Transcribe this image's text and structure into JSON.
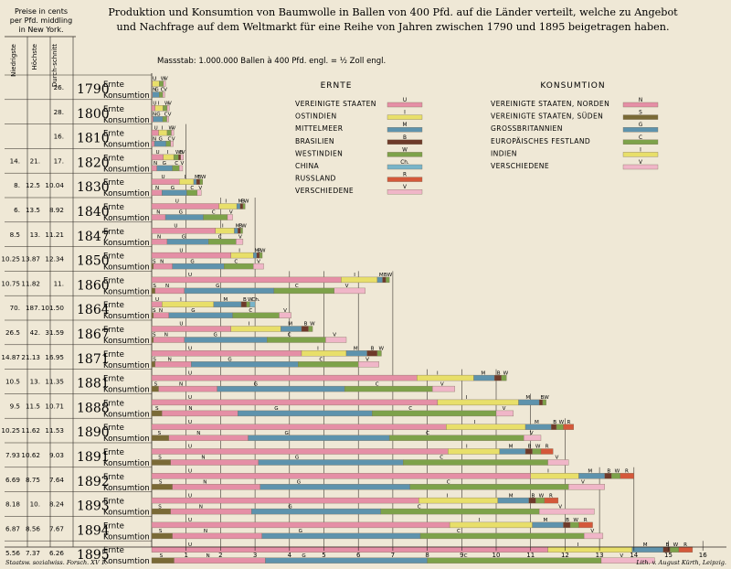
{
  "chart_data": {
    "type": "bar",
    "orientation": "horizontal-stacked",
    "title_line1": "Produktion und Konsumtion von Baumwolle in Ballen von 400 Pfd. auf die Länder verteilt, welche zu Angebot",
    "title_line2": "und Nachfrage auf dem Weltmarkt für eine Reihe von Jahren zwischen 1790 und 1895 beigetragen haben.",
    "scale_note": "Massstab: 1.000.000 Ballen à 400 Pfd. engl. = ½ Zoll engl.",
    "price_header": "Preise in cents per Pfd. middling in New York.",
    "price_columns": [
      "Niedrigste",
      "Höchste",
      "Durch-schnitt"
    ],
    "row_labels": {
      "production": "Ernte",
      "consumption": "Konsumtion"
    },
    "x_ticks": [
      "1",
      "2",
      "3",
      "4",
      "5",
      "6",
      "7",
      "8",
      "9",
      "10",
      "11",
      "12",
      "13",
      "14",
      "15",
      "16",
      "17"
    ],
    "xlim": [
      0,
      17
    ],
    "grid": "vertical lines starting at each year row",
    "legend_production_title": "ERNTE",
    "legend_production": [
      {
        "key": "U",
        "name": "VEREINIGTE STAATEN",
        "color": "#e58fa6"
      },
      {
        "key": "I",
        "name": "OSTINDIEN",
        "color": "#e8df6a"
      },
      {
        "key": "M",
        "name": "MITTELMEER",
        "color": "#5e93ad"
      },
      {
        "key": "B",
        "name": "BRASILIEN",
        "color": "#6e3a2a"
      },
      {
        "key": "W",
        "name": "WESTINDIEN",
        "color": "#7da24a"
      },
      {
        "key": "Ch.",
        "name": "CHINA",
        "color": "#78b4c9"
      },
      {
        "key": "R",
        "name": "RUSSLAND",
        "color": "#d4583a"
      },
      {
        "key": "V",
        "name": "VERSCHIEDENE",
        "color": "#f0b6c8"
      }
    ],
    "legend_consumption_title": "KONSUMTION",
    "legend_consumption": [
      {
        "key": "N",
        "name": "VEREINIGTE STAATEN, NORDEN",
        "color": "#e58fa6"
      },
      {
        "key": "S",
        "name": "VEREINIGTE STAATEN, SÜDEN",
        "color": "#7a6a36"
      },
      {
        "key": "G",
        "name": "GROSSBRITANNIEN",
        "color": "#5e93ad"
      },
      {
        "key": "C",
        "name": "EUROPÄISCHES FESTLAND",
        "color": "#7da24a"
      },
      {
        "key": "I",
        "name": "INDIEN",
        "color": "#e8df6a"
      },
      {
        "key": "V",
        "name": "VERSCHIEDENE",
        "color": "#f0b6c8"
      }
    ],
    "rows": [
      {
        "year": "1790",
        "prices": [
          "",
          "",
          "26."
        ],
        "production": [
          [
            "U",
            0.02
          ],
          [
            "I",
            0.2
          ],
          [
            "W",
            0.12
          ],
          [
            "V",
            0.06
          ]
        ],
        "consumption": [
          [
            "N",
            0.02
          ],
          [
            "G",
            0.2
          ],
          [
            "C",
            0.1
          ],
          [
            "V",
            0.06
          ]
        ]
      },
      {
        "year": "1800",
        "prices": [
          "",
          "",
          "28."
        ],
        "production": [
          [
            "U",
            0.1
          ],
          [
            "I",
            0.23
          ],
          [
            "W",
            0.12
          ],
          [
            "V",
            0.06
          ]
        ],
        "consumption": [
          [
            "N",
            0.04
          ],
          [
            "G",
            0.28
          ],
          [
            "C",
            0.12
          ],
          [
            "V",
            0.06
          ]
        ]
      },
      {
        "year": "1810",
        "prices": [
          "",
          "",
          "16."
        ],
        "production": [
          [
            "U",
            0.2
          ],
          [
            "I",
            0.25
          ],
          [
            "W",
            0.12
          ],
          [
            "V",
            0.07
          ]
        ],
        "consumption": [
          [
            "N",
            0.08
          ],
          [
            "G",
            0.34
          ],
          [
            "C",
            0.13
          ],
          [
            "V",
            0.08
          ]
        ]
      },
      {
        "year": "1820",
        "prices": [
          "14.",
          "21.",
          "17."
        ],
        "production": [
          [
            "U",
            0.34
          ],
          [
            "I",
            0.3
          ],
          [
            "W",
            0.14
          ],
          [
            "B",
            0.06
          ],
          [
            "V",
            0.08
          ]
        ],
        "consumption": [
          [
            "N",
            0.15
          ],
          [
            "G",
            0.45
          ],
          [
            "C",
            0.2
          ],
          [
            "V",
            0.1
          ]
        ]
      },
      {
        "year": "1830",
        "prices": [
          "8.",
          "12.5",
          "10.04"
        ],
        "production": [
          [
            "U",
            0.8
          ],
          [
            "I",
            0.42
          ],
          [
            "M",
            0.08
          ],
          [
            "B",
            0.1
          ],
          [
            "W",
            0.08
          ]
        ],
        "consumption": [
          [
            "N",
            0.3
          ],
          [
            "G",
            0.72
          ],
          [
            "C",
            0.3
          ],
          [
            "V",
            0.12
          ]
        ]
      },
      {
        "year": "1840",
        "prices": [
          "6.",
          "13.5",
          "8.92"
        ],
        "production": [
          [
            "U",
            1.95
          ],
          [
            "I",
            0.52
          ],
          [
            "M",
            0.1
          ],
          [
            "B",
            0.08
          ],
          [
            "W",
            0.06
          ]
        ],
        "consumption": [
          [
            "N",
            0.4
          ],
          [
            "G",
            1.1
          ],
          [
            "C",
            0.7
          ],
          [
            "V",
            0.15
          ]
        ]
      },
      {
        "year": "1847",
        "prices": [
          "8.5",
          "13.",
          "11.21"
        ],
        "production": [
          [
            "U",
            1.85
          ],
          [
            "I",
            0.55
          ],
          [
            "M",
            0.1
          ],
          [
            "B",
            0.08
          ],
          [
            "W",
            0.06
          ]
        ],
        "consumption": [
          [
            "N",
            0.45
          ],
          [
            "G",
            1.2
          ],
          [
            "C",
            0.8
          ],
          [
            "V",
            0.2
          ]
        ]
      },
      {
        "year": "1850",
        "prices": [
          "10.25",
          "13.87",
          "12.34"
        ],
        "production": [
          [
            "U",
            2.3
          ],
          [
            "I",
            0.65
          ],
          [
            "M",
            0.1
          ],
          [
            "B",
            0.08
          ],
          [
            "W",
            0.08
          ]
        ],
        "consumption": [
          [
            "S",
            0.05
          ],
          [
            "N",
            0.55
          ],
          [
            "G",
            1.5
          ],
          [
            "C",
            0.85
          ],
          [
            "V",
            0.3
          ]
        ]
      },
      {
        "year": "1860",
        "prices": [
          "10.75",
          "11.82",
          "11."
        ],
        "production": [
          [
            "U",
            5.5
          ],
          [
            "I",
            1.05
          ],
          [
            "M",
            0.15
          ],
          [
            "B",
            0.1
          ],
          [
            "W",
            0.1
          ]
        ],
        "consumption": [
          [
            "S",
            0.1
          ],
          [
            "N",
            0.85
          ],
          [
            "G",
            2.6
          ],
          [
            "C",
            1.75
          ],
          [
            "V",
            0.9
          ]
        ]
      },
      {
        "year": "1864",
        "prices": [
          "70.",
          "187.",
          "101.50"
        ],
        "production": [
          [
            "U",
            0.3
          ],
          [
            "I",
            1.5
          ],
          [
            "M",
            0.8
          ],
          [
            "B",
            0.15
          ],
          [
            "W",
            0.1
          ],
          [
            "Ch.",
            0.15
          ]
        ],
        "consumption": [
          [
            "S",
            0.05
          ],
          [
            "N",
            0.45
          ],
          [
            "G",
            1.85
          ],
          [
            "C",
            1.35
          ],
          [
            "V",
            0.35
          ]
        ]
      },
      {
        "year": "1867",
        "prices": [
          "26.5",
          "42.",
          "31.59"
        ],
        "production": [
          [
            "U",
            2.3
          ],
          [
            "I",
            1.45
          ],
          [
            "M",
            0.6
          ],
          [
            "B",
            0.2
          ],
          [
            "W",
            0.12
          ]
        ],
        "consumption": [
          [
            "S",
            0.05
          ],
          [
            "N",
            0.9
          ],
          [
            "G",
            2.4
          ],
          [
            "C",
            1.7
          ],
          [
            "V",
            0.6
          ]
        ]
      },
      {
        "year": "1871",
        "prices": [
          "14.87",
          "21.13",
          "16.95"
        ],
        "production": [
          [
            "U",
            4.35
          ],
          [
            "I",
            1.3
          ],
          [
            "M",
            0.6
          ],
          [
            "B",
            0.3
          ],
          [
            "W",
            0.12
          ]
        ],
        "consumption": [
          [
            "S",
            0.1
          ],
          [
            "N",
            1.05
          ],
          [
            "G",
            3.1
          ],
          [
            "C",
            1.75
          ],
          [
            "V",
            0.6
          ]
        ]
      },
      {
        "year": "1881",
        "prices": [
          "10.5",
          "13.",
          "11.35"
        ],
        "production": [
          [
            "U",
            7.7
          ],
          [
            "I",
            1.65
          ],
          [
            "M",
            0.6
          ],
          [
            "B",
            0.2
          ],
          [
            "W",
            0.15
          ]
        ],
        "consumption": [
          [
            "S",
            0.2
          ],
          [
            "N",
            1.7
          ],
          [
            "G",
            3.7
          ],
          [
            "C",
            2.55
          ],
          [
            "V",
            0.65
          ]
        ]
      },
      {
        "year": "1888",
        "prices": [
          "9.5",
          "11.5",
          "10.71"
        ],
        "production": [
          [
            "U",
            8.3
          ],
          [
            "I",
            2.35
          ],
          [
            "M",
            0.6
          ],
          [
            "B",
            0.1
          ],
          [
            "W",
            0.1
          ]
        ],
        "consumption": [
          [
            "S",
            0.3
          ],
          [
            "N",
            2.2
          ],
          [
            "G",
            3.9
          ],
          [
            "C",
            3.6
          ],
          [
            "V",
            0.5
          ]
        ]
      },
      {
        "year": "1890",
        "prices": [
          "10.25",
          "11.62",
          "11.53"
        ],
        "production": [
          [
            "U",
            8.55
          ],
          [
            "I",
            2.3
          ],
          [
            "M",
            0.75
          ],
          [
            "B",
            0.15
          ],
          [
            "W",
            0.2
          ],
          [
            "R",
            0.3
          ]
        ],
        "consumption": [
          [
            "S",
            0.5
          ],
          [
            "N",
            2.3
          ],
          [
            "G",
            4.1
          ],
          [
            "C",
            3.9
          ],
          [
            "V",
            0.5
          ]
        ]
      },
      {
        "year": "1891",
        "prices": [
          "7.93",
          "10.62",
          "9.03"
        ],
        "production": [
          [
            "U",
            8.6
          ],
          [
            "I",
            1.5
          ],
          [
            "M",
            0.75
          ],
          [
            "B",
            0.2
          ],
          [
            "W",
            0.25
          ],
          [
            "R",
            0.35
          ]
        ],
        "consumption": [
          [
            "S",
            0.55
          ],
          [
            "N",
            2.55
          ],
          [
            "G",
            4.2
          ],
          [
            "C",
            4.2
          ],
          [
            "V",
            0.6
          ]
        ]
      },
      {
        "year": "1892",
        "prices": [
          "6.69",
          "8.75",
          "7.64"
        ],
        "production": [
          [
            "U",
            11.0
          ],
          [
            "I",
            1.4
          ],
          [
            "M",
            0.75
          ],
          [
            "B",
            0.2
          ],
          [
            "W",
            0.25
          ],
          [
            "R",
            0.4
          ]
        ],
        "consumption": [
          [
            "S",
            0.6
          ],
          [
            "N",
            2.55
          ],
          [
            "G",
            4.35
          ],
          [
            "C",
            4.6
          ],
          [
            "V",
            1.05
          ]
        ]
      },
      {
        "year": "1893",
        "prices": [
          "8.18",
          "10.",
          "8.24"
        ],
        "production": [
          [
            "U",
            7.75
          ],
          [
            "I",
            2.3
          ],
          [
            "M",
            0.9
          ],
          [
            "B",
            0.2
          ],
          [
            "W",
            0.25
          ],
          [
            "R",
            0.4
          ]
        ],
        "consumption": [
          [
            "S",
            0.55
          ],
          [
            "N",
            2.35
          ],
          [
            "G",
            3.75
          ],
          [
            "C",
            4.6
          ],
          [
            "V",
            1.6
          ]
        ]
      },
      {
        "year": "1894",
        "prices": [
          "6.87",
          "8.56",
          "7.67"
        ],
        "production": [
          [
            "U",
            8.65
          ],
          [
            "I",
            2.4
          ],
          [
            "M",
            0.9
          ],
          [
            "B",
            0.2
          ],
          [
            "W",
            0.25
          ],
          [
            "R",
            0.4
          ]
        ],
        "consumption": [
          [
            "S",
            0.6
          ],
          [
            "N",
            2.6
          ],
          [
            "G",
            4.6
          ],
          [
            "C",
            4.75
          ],
          [
            "V",
            0.55
          ]
        ]
      },
      {
        "year": "1895",
        "prices": [
          "5.56",
          "7.37",
          "6.26"
        ],
        "production": [
          [
            "U",
            11.5
          ],
          [
            "I",
            2.45
          ],
          [
            "M",
            0.9
          ],
          [
            "B",
            0.2
          ],
          [
            "W",
            0.25
          ],
          [
            "R",
            0.4
          ]
        ],
        "consumption": [
          [
            "S",
            0.65
          ],
          [
            "N",
            2.65
          ],
          [
            "G",
            4.7
          ],
          [
            "C",
            5.05
          ],
          [
            "V",
            1.55
          ]
        ]
      }
    ]
  },
  "footer_left": "Staatsw. sozialwiss. Forsch. XV 1.",
  "footer_right": "Lith. v. August Kürth, Leipzig."
}
